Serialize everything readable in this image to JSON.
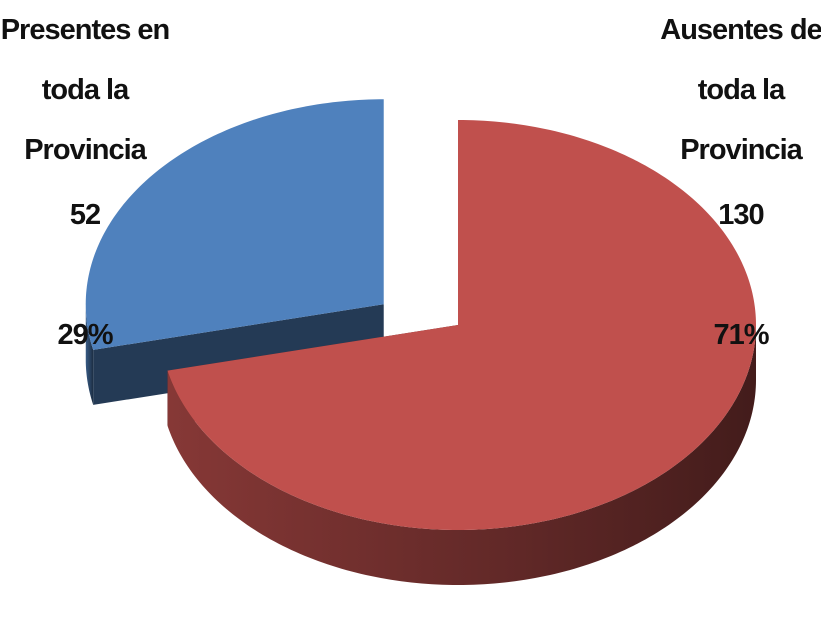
{
  "chart_data": {
    "type": "pie",
    "categories": [
      "Presentes en toda la Provincia",
      "Ausentes de toda la Provincia"
    ],
    "values": [
      52,
      130
    ],
    "percent_labels": [
      "29%",
      "71%"
    ],
    "colors": [
      "#4f81bd",
      "#c0504d"
    ]
  }
}
